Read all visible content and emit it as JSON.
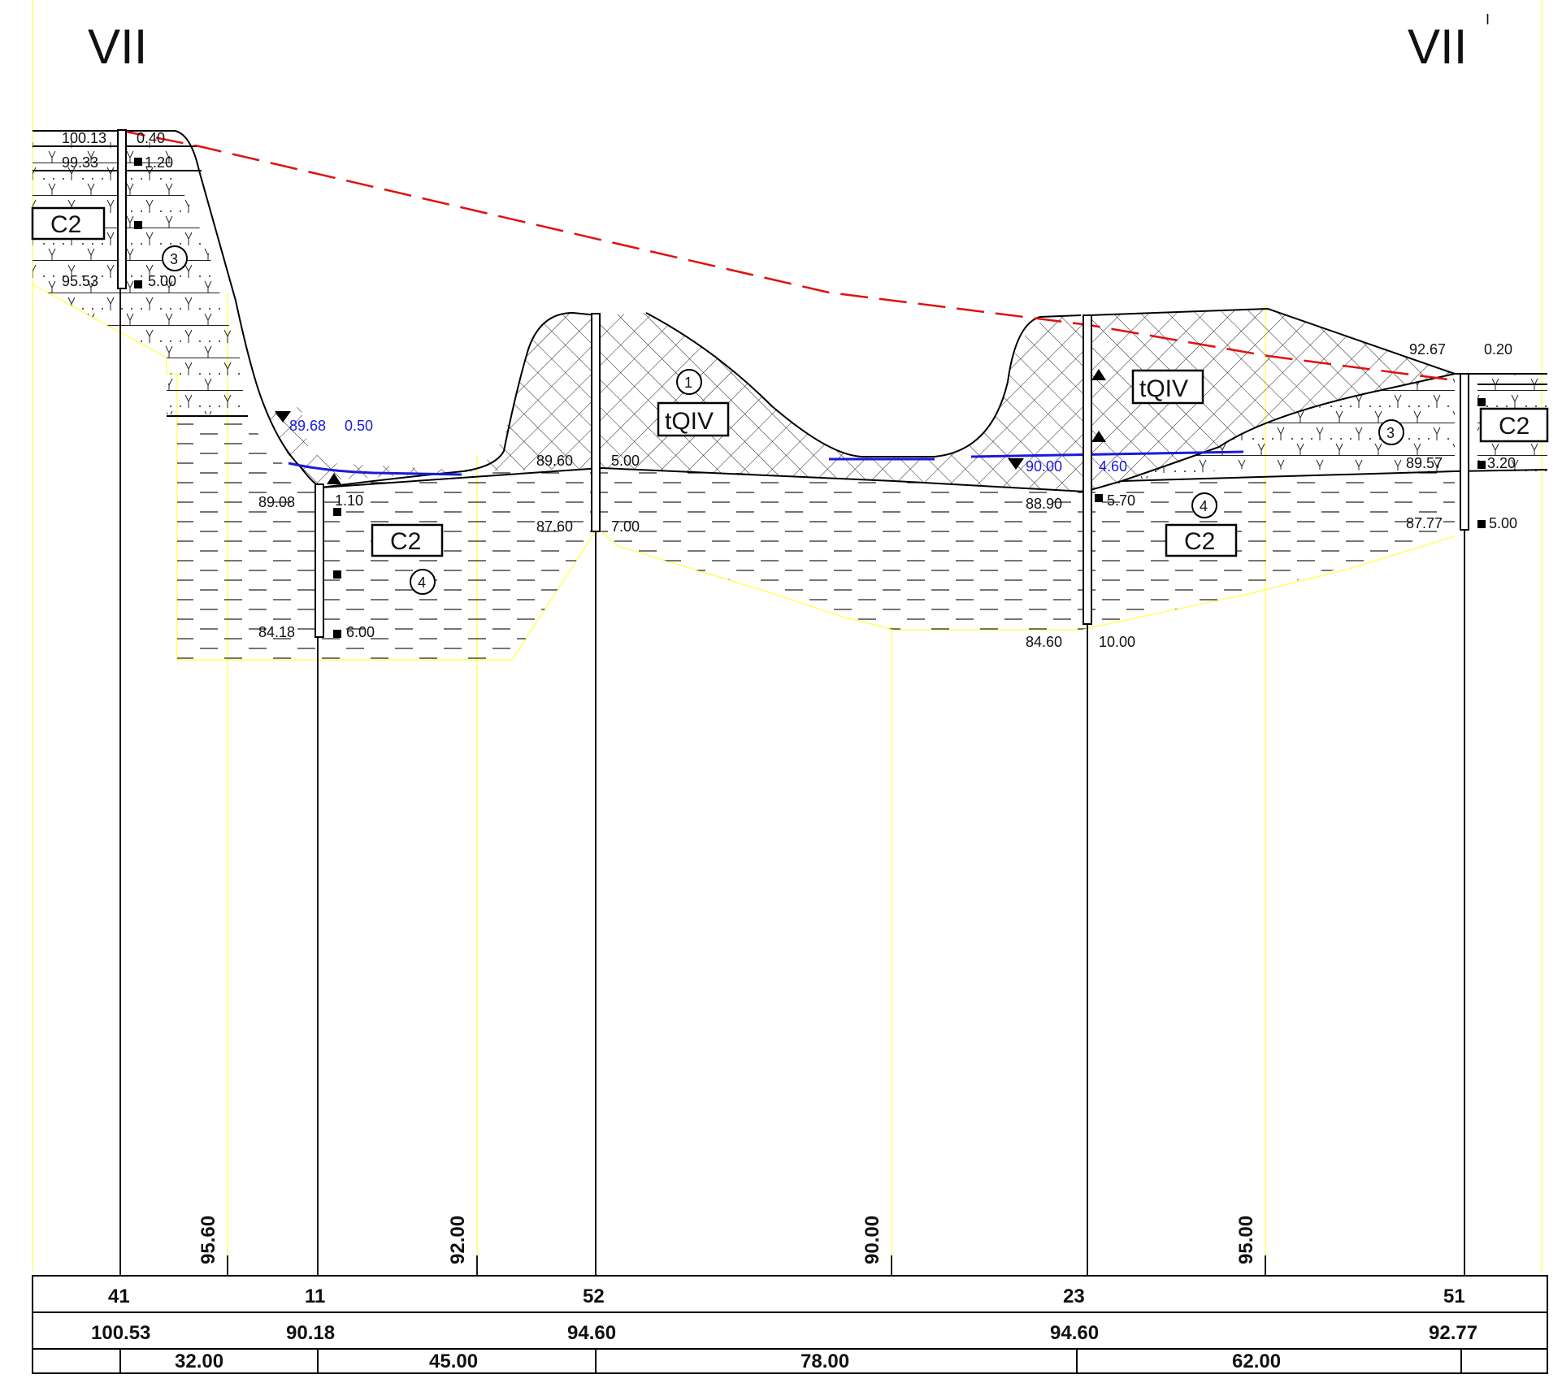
{
  "section": {
    "start_label": "VII",
    "end_label": "VII",
    "end_prime": "I"
  },
  "legend_ref_lines": [
    "95.60",
    "92.00",
    "90.00",
    "95.00"
  ],
  "table": {
    "bore_ids": [
      "41",
      "11",
      "52",
      "23",
      "51"
    ],
    "elevations": [
      "100.53",
      "90.18",
      "94.60",
      "94.60",
      "92.77"
    ],
    "distances": [
      "32.00",
      "45.00",
      "78.00",
      "62.00"
    ]
  },
  "boreholes": {
    "b41": {
      "top_elev": "100.13",
      "top_depth": "0.40",
      "l1_elev": "99.33",
      "l1_depth": "1.20",
      "bot_elev": "95.53",
      "bot_depth": "5.00"
    },
    "b11": {
      "water_elev": "89.68",
      "water_depth": "0.50",
      "l_elev": "89.08",
      "l_depth": "1.10",
      "bot_elev": "84.18",
      "bot_depth": "6.00"
    },
    "b52": {
      "l_elev": "89.60",
      "l_depth": "5.00",
      "bot_elev": "87.60",
      "bot_depth": "7.00"
    },
    "b23": {
      "water_elev": "90.00",
      "water_depth": "4.60",
      "l_elev": "88.90",
      "l_depth": "5.70",
      "bot_elev": "84.60",
      "bot_depth": "10.00"
    },
    "b51": {
      "top_elev": "92.67",
      "top_depth": "0.20",
      "l_elev": "89.57",
      "l_depth": "3.20",
      "bot_elev": "87.77",
      "bot_depth": "5.00"
    }
  },
  "soil_labels": {
    "c2": "C2",
    "tqiv": "tQIV",
    "layer1": "1",
    "layer3": "3",
    "layer4": "4"
  },
  "colors": {
    "ground_line": "#000000",
    "water_line": "#1a1adb",
    "design_line": "#e01010",
    "grid": "#ffff66"
  }
}
